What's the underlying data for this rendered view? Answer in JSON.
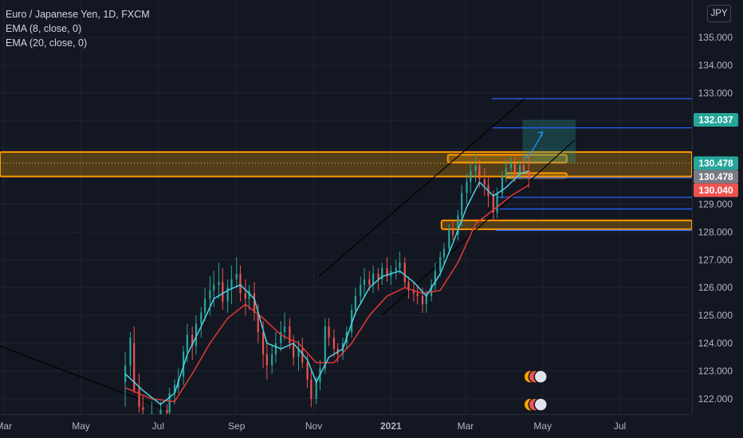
{
  "legend": {
    "symbol": "Euro / Japanese Yen, 1D, FXCM",
    "ema_fast": "EMA (8, close, 0)",
    "ema_slow": "EMA (20, close, 0)"
  },
  "currency_badge": "JPY",
  "colors": {
    "background": "#131722",
    "grid": "#1f2430",
    "axis_text": "#b2b5be",
    "up_candle": "#26a69a",
    "down_candle": "#ef5350",
    "ema_fast": "#4dd0e1",
    "ema_slow": "#e53935",
    "zone_fill": "#f7a600",
    "zone_border": "#ff9800",
    "blue_level": "#2962ff",
    "channel": "#000000",
    "target_box": "#26a69a"
  },
  "chart_data": {
    "type": "candlestick",
    "symbol": "EURJPY",
    "timeframe": "1D",
    "y_axis": {
      "ticks": [
        122.0,
        123.0,
        124.0,
        125.0,
        126.0,
        127.0,
        128.0,
        129.0,
        130.0,
        131.0,
        132.0,
        133.0,
        134.0,
        135.0
      ],
      "tick_labels": [
        "122.000",
        "123.000",
        "124.000",
        "125.000",
        "126.000",
        "127.000",
        "128.000",
        "129.000",
        "",
        "",
        "",
        "133.000",
        "134.000",
        "135.000"
      ],
      "range": [
        121.45,
        136.35
      ]
    },
    "x_axis": {
      "ticks": [
        "2020-03-01",
        "2020-05-01",
        "2020-07-01",
        "2020-09-01",
        "2020-11-01",
        "2021-01-01",
        "2021-03-01",
        "2021-05-01",
        "2021-07-01"
      ],
      "tick_labels": [
        "Mar",
        "May",
        "Jul",
        "Sep",
        "Nov",
        "2021",
        "Mar",
        "May",
        "Jul"
      ],
      "range": [
        "2020-02-27",
        "2021-08-27"
      ]
    },
    "price_labels": [
      {
        "value": 132.037,
        "text": "132.037",
        "color": "#26a69a"
      },
      {
        "value": 130.478,
        "text": "130.478",
        "color": "#26a69a"
      },
      {
        "value": 130.478,
        "text": "130.478",
        "color": "#787b86"
      },
      {
        "value": 130.04,
        "text": "130.040",
        "color": "#ef5350"
      }
    ],
    "zones": [
      {
        "from_date": "2020-02-27",
        "to_date": "2021-08-27",
        "low": 130.0,
        "high": 130.88
      },
      {
        "from_date": "2021-02-10",
        "to_date": "2021-08-27",
        "low": 128.1,
        "high": 128.42
      },
      {
        "from_date": "2021-02-15",
        "to_date": "2021-05-20",
        "low": 130.5,
        "high": 130.78
      },
      {
        "from_date": "2021-04-02",
        "to_date": "2021-05-20",
        "low": 129.95,
        "high": 130.12
      }
    ],
    "blue_levels": [
      {
        "from_date": "2021-03-22",
        "value": 132.8
      },
      {
        "from_date": "2021-03-22",
        "value": 131.75
      },
      {
        "from_date": "2021-04-08",
        "value": 129.95
      },
      {
        "from_date": "2021-03-25",
        "value": 129.25
      },
      {
        "from_date": "2021-03-25",
        "value": 128.83
      },
      {
        "from_date": "2021-03-25",
        "value": 128.06
      }
    ],
    "trend_lines": [
      {
        "from": [
          "2020-02-27",
          123.9
        ],
        "to": [
          "2020-07-08",
          121.6
        ]
      },
      {
        "from": [
          "2020-11-05",
          126.4
        ],
        "to": [
          "2021-04-17",
          132.8
        ]
      },
      {
        "from": [
          "2020-12-25",
          125.0
        ],
        "to": [
          "2021-05-26",
          131.3
        ]
      }
    ],
    "target_box": {
      "from_date": "2021-04-15",
      "to_date": "2021-05-27",
      "low": 130.48,
      "high": 132.04
    },
    "target_arrow": {
      "from": [
        "2021-04-17",
        130.66
      ],
      "to": [
        "2021-05-01",
        131.6
      ]
    },
    "ohlc": [
      [
        "2020-06-05",
        122.6,
        123.7,
        121.7,
        123.2
      ],
      [
        "2020-06-09",
        123.2,
        124.4,
        122.8,
        124.2
      ],
      [
        "2020-06-12",
        124.0,
        124.6,
        122.2,
        122.3
      ],
      [
        "2020-06-16",
        122.4,
        122.9,
        121.5,
        121.7
      ],
      [
        "2020-06-19",
        121.7,
        122.1,
        121.3,
        121.6
      ],
      [
        "2020-06-26",
        121.5,
        121.9,
        121.2,
        121.5
      ],
      [
        "2020-07-03",
        121.4,
        121.9,
        121.2,
        121.6
      ],
      [
        "2020-07-08",
        121.6,
        121.8,
        121.3,
        121.5
      ],
      [
        "2020-07-10",
        121.5,
        122.4,
        121.4,
        122.2
      ],
      [
        "2020-07-14",
        122.2,
        122.7,
        121.8,
        122.5
      ],
      [
        "2020-07-17",
        122.4,
        123.1,
        122.2,
        122.7
      ],
      [
        "2020-07-21",
        122.8,
        123.9,
        122.5,
        123.7
      ],
      [
        "2020-07-24",
        123.7,
        124.7,
        123.3,
        124.3
      ],
      [
        "2020-07-28",
        124.3,
        124.6,
        123.4,
        123.9
      ],
      [
        "2020-07-31",
        123.9,
        125.0,
        123.6,
        124.7
      ],
      [
        "2020-08-04",
        124.7,
        125.3,
        124.2,
        125.1
      ],
      [
        "2020-08-07",
        125.1,
        126.0,
        124.8,
        125.6
      ],
      [
        "2020-08-11",
        125.6,
        126.4,
        125.0,
        125.9
      ],
      [
        "2020-08-14",
        125.9,
        126.6,
        125.3,
        126.1
      ],
      [
        "2020-08-18",
        126.1,
        126.9,
        125.6,
        126.2
      ],
      [
        "2020-08-21",
        126.2,
        126.7,
        125.2,
        125.5
      ],
      [
        "2020-08-25",
        125.5,
        126.3,
        125.1,
        126.0
      ],
      [
        "2020-08-28",
        126.0,
        126.8,
        125.4,
        126.3
      ],
      [
        "2020-09-01",
        126.3,
        127.1,
        126.0,
        126.5
      ],
      [
        "2020-09-04",
        126.5,
        126.8,
        125.5,
        125.8
      ],
      [
        "2020-09-08",
        125.8,
        126.3,
        125.0,
        125.6
      ],
      [
        "2020-09-11",
        125.6,
        126.1,
        125.2,
        125.9
      ],
      [
        "2020-09-15",
        125.8,
        126.2,
        124.8,
        125.1
      ],
      [
        "2020-09-18",
        125.1,
        125.4,
        124.0,
        124.4
      ],
      [
        "2020-09-22",
        124.4,
        124.8,
        123.1,
        123.6
      ],
      [
        "2020-09-25",
        123.6,
        124.1,
        122.7,
        123.2
      ],
      [
        "2020-09-29",
        123.2,
        123.9,
        122.9,
        123.6
      ],
      [
        "2020-10-02",
        123.6,
        124.4,
        123.3,
        124.0
      ],
      [
        "2020-10-06",
        124.0,
        124.8,
        123.7,
        124.4
      ],
      [
        "2020-10-09",
        124.4,
        125.1,
        124.1,
        124.6
      ],
      [
        "2020-10-13",
        124.6,
        124.9,
        123.8,
        124.0
      ],
      [
        "2020-10-16",
        124.0,
        124.3,
        123.2,
        123.5
      ],
      [
        "2020-10-20",
        123.5,
        124.1,
        123.0,
        123.8
      ],
      [
        "2020-10-23",
        123.8,
        124.2,
        123.1,
        123.3
      ],
      [
        "2020-10-27",
        123.3,
        123.6,
        122.4,
        122.7
      ],
      [
        "2020-10-30",
        122.7,
        123.0,
        121.7,
        122.0
      ],
      [
        "2020-11-03",
        122.0,
        122.8,
        121.8,
        122.6
      ],
      [
        "2020-11-06",
        122.6,
        123.4,
        122.3,
        123.1
      ],
      [
        "2020-11-10",
        123.1,
        124.9,
        122.9,
        124.6
      ],
      [
        "2020-11-13",
        124.6,
        124.9,
        123.9,
        124.2
      ],
      [
        "2020-11-17",
        124.2,
        124.5,
        123.5,
        123.8
      ],
      [
        "2020-11-20",
        123.8,
        124.0,
        123.3,
        123.6
      ],
      [
        "2020-11-24",
        123.6,
        124.2,
        123.4,
        124.0
      ],
      [
        "2020-11-27",
        124.0,
        124.6,
        123.8,
        124.4
      ],
      [
        "2020-12-01",
        124.4,
        125.4,
        124.2,
        125.2
      ],
      [
        "2020-12-04",
        125.2,
        126.0,
        125.0,
        125.7
      ],
      [
        "2020-12-08",
        125.7,
        126.4,
        125.4,
        126.1
      ],
      [
        "2020-12-11",
        126.1,
        126.7,
        125.7,
        126.3
      ],
      [
        "2020-12-15",
        126.3,
        126.6,
        125.9,
        126.1
      ],
      [
        "2020-12-18",
        126.1,
        126.8,
        125.8,
        126.5
      ],
      [
        "2020-12-22",
        126.5,
        126.7,
        125.9,
        126.3
      ],
      [
        "2020-12-25",
        126.3,
        126.9,
        126.1,
        126.7
      ],
      [
        "2020-12-29",
        126.7,
        127.1,
        126.2,
        126.4
      ],
      [
        "2021-01-01",
        126.4,
        126.8,
        126.1,
        126.6
      ],
      [
        "2021-01-05",
        126.6,
        127.0,
        126.3,
        126.7
      ],
      [
        "2021-01-08",
        126.7,
        127.3,
        126.5,
        126.9
      ],
      [
        "2021-01-12",
        126.9,
        127.1,
        126.0,
        126.2
      ],
      [
        "2021-01-15",
        126.2,
        126.4,
        125.6,
        125.9
      ],
      [
        "2021-01-19",
        125.9,
        126.2,
        125.5,
        125.8
      ],
      [
        "2021-01-22",
        125.8,
        126.1,
        125.4,
        125.7
      ],
      [
        "2021-01-26",
        125.7,
        126.0,
        125.1,
        125.4
      ],
      [
        "2021-01-29",
        125.4,
        125.9,
        125.1,
        125.7
      ],
      [
        "2021-02-02",
        125.7,
        126.3,
        125.5,
        126.1
      ],
      [
        "2021-02-05",
        126.1,
        126.9,
        125.9,
        126.6
      ],
      [
        "2021-02-09",
        126.6,
        127.3,
        126.4,
        127.1
      ],
      [
        "2021-02-12",
        127.1,
        127.6,
        126.8,
        127.4
      ],
      [
        "2021-02-16",
        127.4,
        128.3,
        127.2,
        128.1
      ],
      [
        "2021-02-19",
        128.1,
        128.4,
        127.7,
        127.9
      ],
      [
        "2021-02-23",
        127.9,
        128.8,
        127.7,
        128.6
      ],
      [
        "2021-02-26",
        128.6,
        129.7,
        128.2,
        129.4
      ],
      [
        "2021-03-02",
        129.4,
        130.1,
        129.0,
        129.8
      ],
      [
        "2021-03-05",
        129.8,
        130.5,
        129.4,
        130.2
      ],
      [
        "2021-03-09",
        130.2,
        130.8,
        129.8,
        130.4
      ],
      [
        "2021-03-12",
        130.4,
        130.6,
        129.6,
        129.9
      ],
      [
        "2021-03-16",
        129.9,
        130.3,
        129.3,
        129.7
      ],
      [
        "2021-03-19",
        129.7,
        130.0,
        128.9,
        129.3
      ],
      [
        "2021-03-23",
        129.3,
        129.5,
        128.4,
        128.7
      ],
      [
        "2021-03-26",
        128.7,
        129.6,
        128.5,
        129.4
      ],
      [
        "2021-03-30",
        129.4,
        130.2,
        129.2,
        130.0
      ],
      [
        "2021-04-02",
        130.0,
        130.6,
        129.8,
        130.3
      ],
      [
        "2021-04-06",
        130.3,
        130.7,
        129.9,
        130.5
      ],
      [
        "2021-04-09",
        130.5,
        130.7,
        129.8,
        130.1
      ],
      [
        "2021-04-13",
        130.1,
        130.6,
        129.9,
        130.4
      ],
      [
        "2021-04-16",
        130.4,
        130.7,
        130.0,
        130.2
      ],
      [
        "2021-04-20",
        130.2,
        130.8,
        129.6,
        130.0
      ]
    ],
    "ema8": [
      [
        "2020-06-05",
        122.9
      ],
      [
        "2020-06-19",
        122.3
      ],
      [
        "2020-07-03",
        121.8
      ],
      [
        "2020-07-14",
        122.2
      ],
      [
        "2020-07-24",
        123.6
      ],
      [
        "2020-08-04",
        124.6
      ],
      [
        "2020-08-14",
        125.6
      ],
      [
        "2020-08-25",
        125.9
      ],
      [
        "2020-09-04",
        126.1
      ],
      [
        "2020-09-15",
        125.6
      ],
      [
        "2020-09-25",
        124.0
      ],
      [
        "2020-10-06",
        123.8
      ],
      [
        "2020-10-16",
        124.0
      ],
      [
        "2020-10-27",
        123.4
      ],
      [
        "2020-11-03",
        122.6
      ],
      [
        "2020-11-13",
        123.5
      ],
      [
        "2020-11-24",
        123.8
      ],
      [
        "2020-12-04",
        125.1
      ],
      [
        "2020-12-15",
        126.0
      ],
      [
        "2020-12-25",
        126.4
      ],
      [
        "2021-01-08",
        126.6
      ],
      [
        "2021-01-19",
        126.2
      ],
      [
        "2021-01-29",
        125.7
      ],
      [
        "2021-02-09",
        126.5
      ],
      [
        "2021-02-19",
        127.6
      ],
      [
        "2021-03-02",
        128.9
      ],
      [
        "2021-03-12",
        129.8
      ],
      [
        "2021-03-23",
        129.3
      ],
      [
        "2021-04-02",
        129.6
      ],
      [
        "2021-04-13",
        130.1
      ],
      [
        "2021-04-20",
        130.2
      ]
    ],
    "ema20": [
      [
        "2020-06-05",
        122.4
      ],
      [
        "2020-06-26",
        122.0
      ],
      [
        "2020-07-14",
        121.9
      ],
      [
        "2020-07-28",
        122.9
      ],
      [
        "2020-08-11",
        124.0
      ],
      [
        "2020-08-25",
        124.9
      ],
      [
        "2020-09-08",
        125.4
      ],
      [
        "2020-09-22",
        124.9
      ],
      [
        "2020-10-06",
        124.3
      ],
      [
        "2020-10-20",
        124.0
      ],
      [
        "2020-11-03",
        123.3
      ],
      [
        "2020-11-17",
        123.3
      ],
      [
        "2020-12-01",
        124.0
      ],
      [
        "2020-12-15",
        125.0
      ],
      [
        "2020-12-29",
        125.7
      ],
      [
        "2021-01-12",
        126.0
      ],
      [
        "2021-01-26",
        125.8
      ],
      [
        "2021-02-09",
        125.9
      ],
      [
        "2021-02-23",
        126.9
      ],
      [
        "2021-03-09",
        128.3
      ],
      [
        "2021-03-23",
        128.8
      ],
      [
        "2021-04-06",
        129.3
      ],
      [
        "2021-04-20",
        129.7
      ]
    ]
  }
}
